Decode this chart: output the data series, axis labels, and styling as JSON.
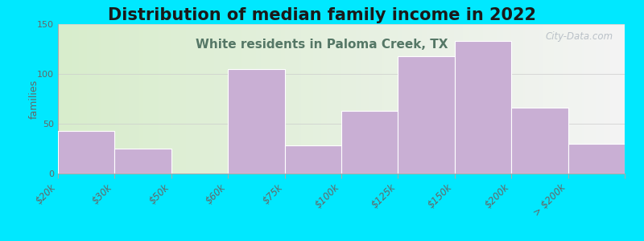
{
  "title": "Distribution of median family income in 2022",
  "subtitle": "White residents in Paloma Creek, TX",
  "ylabel": "families",
  "categories": [
    "$20k",
    "$30k",
    "$50k",
    "$60k",
    "$75k",
    "$100k",
    "$125k",
    "$150k",
    "$200k",
    "> $200k"
  ],
  "values": [
    43,
    25,
    0,
    105,
    28,
    63,
    118,
    133,
    66,
    30
  ],
  "bar_color": "#c9afd4",
  "background_outer": "#00e8ff",
  "background_plot_left": "#d8edcc",
  "background_plot_right": "#f4f4f4",
  "ylim": [
    0,
    150
  ],
  "yticks": [
    0,
    50,
    100,
    150
  ],
  "title_fontsize": 15,
  "subtitle_fontsize": 11,
  "subtitle_color": "#557766",
  "watermark_text": "City-Data.com",
  "watermark_color": "#b0b8c0"
}
